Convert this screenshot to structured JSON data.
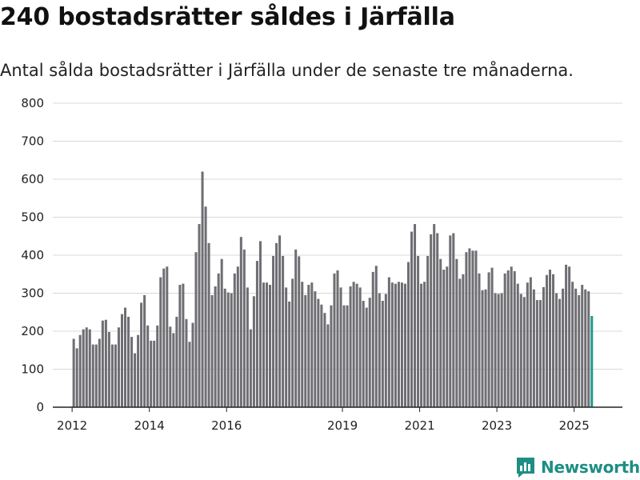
{
  "header": {
    "title": "240 bostadsrätter såldes i Järfälla",
    "subtitle": "Antal sålda bostadsrätter i Järfälla under de senaste tre månaderna."
  },
  "brand": {
    "name": "Newsworthy",
    "icon": "newsworthy-logo-icon",
    "color": "#1e8e84"
  },
  "chart_data": {
    "type": "bar",
    "title": "",
    "xlabel": "",
    "ylabel": "",
    "ylim": [
      0,
      800
    ],
    "yticks": [
      0,
      100,
      200,
      300,
      400,
      500,
      600,
      700,
      800
    ],
    "xlim": [
      "2011-07",
      "2026-04"
    ],
    "xticks": [
      {
        "label": "2012",
        "date": "2012-01"
      },
      {
        "label": "2014",
        "date": "2014-01"
      },
      {
        "label": "2016",
        "date": "2016-01"
      },
      {
        "label": "2019",
        "date": "2019-01"
      },
      {
        "label": "2021",
        "date": "2021-01"
      },
      {
        "label": "2023",
        "date": "2023-01"
      },
      {
        "label": "2025",
        "date": "2025-01"
      }
    ],
    "grid": true,
    "bar_color": "#6e6e73",
    "highlight_color": "#1e9a8e",
    "start": "2012-01",
    "frequency": "monthly",
    "annotation": {
      "text": "240",
      "date": "2025-07"
    },
    "values": [
      180,
      155,
      190,
      205,
      210,
      205,
      165,
      165,
      180,
      228,
      230,
      198,
      165,
      165,
      210,
      245,
      262,
      238,
      185,
      142,
      190,
      275,
      295,
      215,
      175,
      175,
      215,
      342,
      365,
      370,
      212,
      195,
      238,
      322,
      325,
      232,
      172,
      222,
      408,
      482,
      620,
      528,
      432,
      295,
      318,
      352,
      390,
      312,
      302,
      300,
      352,
      370,
      448,
      415,
      315,
      205,
      292,
      385,
      437,
      328,
      328,
      322,
      398,
      432,
      452,
      398,
      315,
      278,
      338,
      415,
      397,
      330,
      295,
      322,
      328,
      305,
      285,
      270,
      248,
      218,
      268,
      352,
      360,
      315,
      268,
      268,
      318,
      330,
      325,
      315,
      280,
      262,
      288,
      356,
      372,
      300,
      280,
      298,
      342,
      328,
      325,
      330,
      328,
      325,
      382,
      462,
      482,
      398,
      325,
      330,
      398,
      455,
      482,
      458,
      390,
      362,
      370,
      452,
      458,
      390,
      338,
      350,
      408,
      418,
      412,
      412,
      352,
      308,
      310,
      355,
      367,
      300,
      298,
      300,
      352,
      360,
      370,
      358,
      325,
      298,
      290,
      328,
      342,
      310,
      282,
      282,
      316,
      348,
      362,
      350,
      300,
      285,
      312,
      375,
      370,
      330,
      312,
      295,
      322,
      310,
      305,
      240
    ]
  }
}
